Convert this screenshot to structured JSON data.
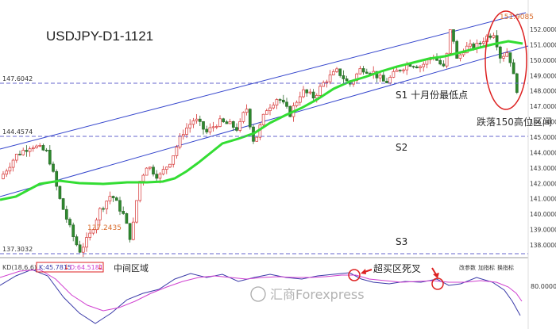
{
  "chart_data": {
    "type": "candlestick",
    "title": "USDJPY-D1-1121",
    "price_axis": {
      "ticks": [
        "152.0000",
        "151.0000",
        "150.0000",
        "149.0000",
        "148.0000",
        "147.0000",
        "146.0000",
        "145.0000",
        "144.0000",
        "143.0000",
        "142.0000",
        "141.0000",
        "140.0000",
        "139.0000",
        "138.0000"
      ],
      "range": [
        137.6,
        152.9
      ]
    },
    "levels": [
      {
        "value": 147.6042,
        "label": "147.6042",
        "annotation": "S1 十月份最低点"
      },
      {
        "value": 144.4574,
        "label": "144.4574",
        "annotation": "S2"
      },
      {
        "value": 137.3032,
        "label": "137.3032",
        "annotation": "S3"
      }
    ],
    "annotations": {
      "high_value": "151.9085",
      "low_value": "137.2435",
      "drop_note": "跌落150高位区间",
      "kd_zone_note": "中间区域",
      "kd_cross_note": "超买区死叉",
      "watermark": "汇商Forexpress"
    },
    "kd_panel": {
      "label": "KD(18,6,6)",
      "k_value": "K:45.7815",
      "d_value": "D:64.5181",
      "tick_label": "80.0000",
      "buttons": [
        "改参数",
        "加指标",
        "换指标"
      ],
      "k_color": "#3a3aa8",
      "d_color": "#d040d0"
    },
    "colors": {
      "up": "#ffffff",
      "up_border": "#d63333",
      "down": "#2d8a2d",
      "ma": "#33dd33",
      "channel": "#3344cc",
      "level": "#6666cc",
      "highlight": "#dd2222"
    }
  }
}
